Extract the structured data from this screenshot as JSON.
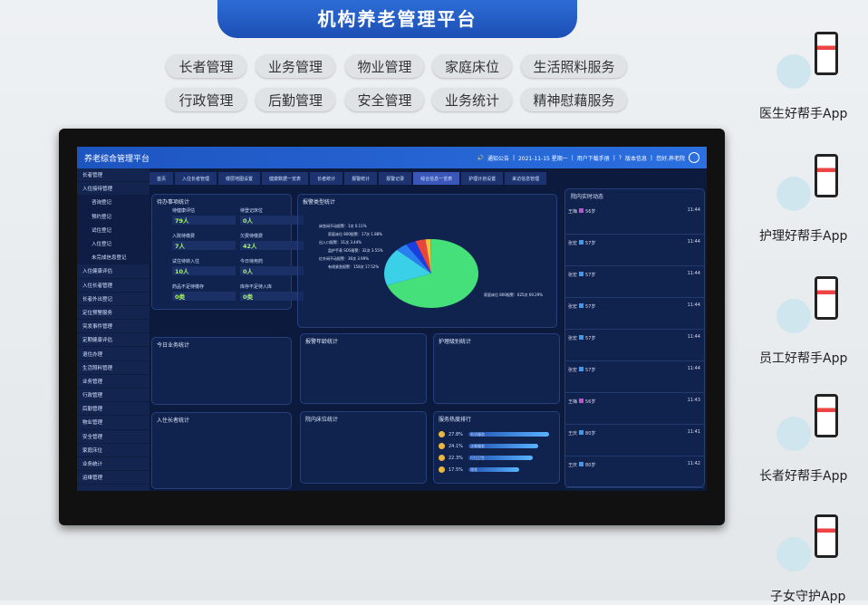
{
  "sign": {
    "title": "机构养老管理平台",
    "tags_row1": [
      "长者管理",
      "业务管理",
      "物业管理",
      "家庭床位",
      "生活照料服务"
    ],
    "tags_row2": [
      "行政管理",
      "后勤管理",
      "安全管理",
      "业务统计",
      "精神慰藉服务"
    ]
  },
  "apps": [
    "医生好帮手App",
    "护理好帮手App",
    "员工好帮手App",
    "长者好帮手App",
    "子女守护App"
  ],
  "screen": {
    "title": "养老综合管理平台",
    "header": {
      "notice": "通知公告",
      "date": "2021-11-15 星期一",
      "manual": "用户下载手册",
      "version": "版本信息",
      "greeting": "您好,养老院"
    },
    "sidebar": [
      {
        "label": "长者管理",
        "sub": false
      },
      {
        "label": "入住接待管理",
        "sub": false
      },
      {
        "label": "咨询登记",
        "sub": true
      },
      {
        "label": "预约登记",
        "sub": true
      },
      {
        "label": "试住登记",
        "sub": true
      },
      {
        "label": "入住登记",
        "sub": true
      },
      {
        "label": "未完成信息登记",
        "sub": true
      },
      {
        "label": "入住健康评估",
        "sub": false
      },
      {
        "label": "入住长者管理",
        "sub": false
      },
      {
        "label": "长者外出登记",
        "sub": false
      },
      {
        "label": "定位预警服务",
        "sub": false
      },
      {
        "label": "突发事件管理",
        "sub": false
      },
      {
        "label": "定期健康评估",
        "sub": false
      },
      {
        "label": "退住办理",
        "sub": false
      },
      {
        "label": "生活照料管理",
        "sub": false
      },
      {
        "label": "业务管理",
        "sub": false
      },
      {
        "label": "行政管理",
        "sub": false
      },
      {
        "label": "后勤管理",
        "sub": false
      },
      {
        "label": "物业管理",
        "sub": false
      },
      {
        "label": "安全管理",
        "sub": false
      },
      {
        "label": "家庭床位",
        "sub": false
      },
      {
        "label": "业务统计",
        "sub": false
      },
      {
        "label": "运维管理",
        "sub": false
      }
    ],
    "tabs": [
      "首页",
      "入住长者管理",
      "楼层地图设置",
      "健康数据一览表",
      "长者统计",
      "报警统计",
      "报警记录",
      "综合信息一览表",
      "护理计划设置",
      "来访信息管理"
    ],
    "active_tab": 7,
    "pending": {
      "title": "待办事项统计",
      "items": [
        {
          "label": "待健康评估",
          "value": "79人"
        },
        {
          "label": "待登记床位",
          "value": "0人"
        },
        {
          "label": "入院待缴费",
          "value": "7人"
        },
        {
          "label": "欠费待缴费",
          "value": "42人"
        },
        {
          "label": "试住待转入住",
          "value": "10人"
        },
        {
          "label": "今日待用药",
          "value": "0人"
        },
        {
          "label": "药品不足待缴存",
          "value": "0类"
        },
        {
          "label": "库存不足待入库",
          "value": "0类"
        }
      ]
    },
    "panels": {
      "today": "今日业务统计",
      "residents": "入住长者统计",
      "age": "报警年龄统计",
      "care": "护理级别统计",
      "beds": "院内床位统计",
      "hot": "服务热度排行"
    },
    "hot_rank": [
      {
        "label": "助浴服务",
        "pct": "27.8%",
        "v": 27.8
      },
      {
        "label": "送餐服务",
        "pct": "24.1%",
        "v": 24.1
      },
      {
        "label": "打扫卫生",
        "pct": "22.3%",
        "v": 22.3
      },
      {
        "label": "理发",
        "pct": "17.5%",
        "v": 17.5
      }
    ],
    "feed": {
      "title": "院内实时动态",
      "items": [
        {
          "name": "王梅",
          "age": "56岁",
          "time": "11:44",
          "gender": "f"
        },
        {
          "name": "张宏",
          "age": "57岁",
          "time": "11:44",
          "gender": "m"
        },
        {
          "name": "张宏",
          "age": "57岁",
          "time": "11:44",
          "gender": "m"
        },
        {
          "name": "张宏",
          "age": "57岁",
          "time": "11:44",
          "gender": "m"
        },
        {
          "name": "张宏",
          "age": "57岁",
          "time": "11:44",
          "gender": "m"
        },
        {
          "name": "张宏",
          "age": "57岁",
          "time": "11:44",
          "gender": "m"
        },
        {
          "name": "王梅",
          "age": "56岁",
          "time": "11:43",
          "gender": "f"
        },
        {
          "name": "王庆",
          "age": "80岁",
          "time": "11:41",
          "gender": "m"
        },
        {
          "name": "王庆",
          "age": "80岁",
          "time": "11:42",
          "gender": "m"
        }
      ]
    }
  },
  "chart_data": {
    "type": "pie",
    "title": "报警类型统计",
    "slices": [
      {
        "label": "家庭床位 800报警：625次 69.29%",
        "value": 625,
        "color": "#45e07a"
      },
      {
        "label": "有线紧急报警：158次 17.52%",
        "value": 158,
        "color": "#3ad0e8"
      },
      {
        "label": "红外闲不动报警：36次 3.99%",
        "value": 36,
        "color": "#2a7ff0"
      },
      {
        "label": "监护手表 SOS报警：32次 3.55%",
        "value": 32,
        "color": "#1a3ee0"
      },
      {
        "label": "出入口报警：31次 3.44%",
        "value": 31,
        "color": "#e8443a"
      },
      {
        "label": "家庭床位 800报警：17次 1.88%",
        "value": 17,
        "color": "#f0c040"
      },
      {
        "label": "床垫闲不动报警：1次 0.11%",
        "value": 1,
        "color": "#c040c0"
      }
    ]
  }
}
